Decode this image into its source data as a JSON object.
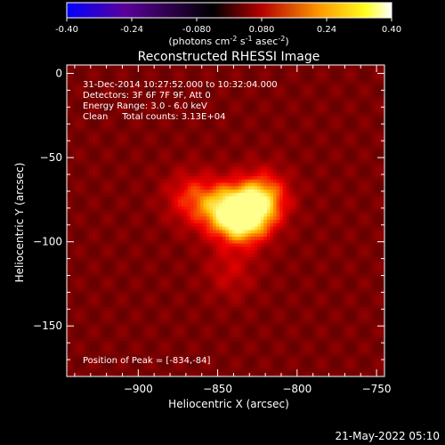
{
  "colorbar": {
    "ticks": [
      "-0.40",
      "-0.24",
      "-0.080",
      "0.080",
      "0.24",
      "0.40"
    ],
    "unit_label": "(photons cm",
    "unit_sup1": "-2",
    "unit_mid": " s",
    "unit_sup2": "-1",
    "unit_end": " asec",
    "unit_sup3": "-2",
    "unit_close": ")",
    "colors": [
      "#0000ff",
      "#5b009a",
      "#000000",
      "#b50000",
      "#ff9a00",
      "#ffff20",
      "#ffffff"
    ]
  },
  "chart_data": {
    "type": "heatmap",
    "title": "Reconstructed RHESSI Image",
    "xlabel": "Heliocentric X (arcsec)",
    "ylabel": "Heliocentric Y (arcsec)",
    "xlim": [
      -945,
      -745
    ],
    "ylim": [
      -180,
      5
    ],
    "xticks": [
      -900,
      -850,
      -800,
      -750
    ],
    "xtick_labels": [
      "−900",
      "−850",
      "−800",
      "−750"
    ],
    "yticks": [
      0,
      -50,
      -100,
      -150
    ],
    "ytick_labels": [
      "0",
      "−50",
      "−100",
      "−150"
    ],
    "vmin": -0.4,
    "vmax": 0.4,
    "sources": [
      {
        "x": -834,
        "y": -84,
        "amp": 0.4
      },
      {
        "x": -848,
        "y": -80,
        "amp": 0.25
      },
      {
        "x": -822,
        "y": -73,
        "amp": 0.26
      },
      {
        "x": -868,
        "y": -73,
        "amp": 0.16
      },
      {
        "x": -843,
        "y": -117,
        "amp": 0.09
      }
    ],
    "info_lines": [
      "31-Dec-2014 10:27:52.000 to 10:32:04.000",
      "Detectors: 3F 6F 7F 9F, Att 0",
      "Energy Range: 3.0 - 6.0 keV",
      "Clean     Total counts: 3.13E+04"
    ],
    "peak_label": "Position of Peak = [-834,-84]"
  },
  "footer": {
    "timestamp": "21-May-2022 05:10"
  }
}
